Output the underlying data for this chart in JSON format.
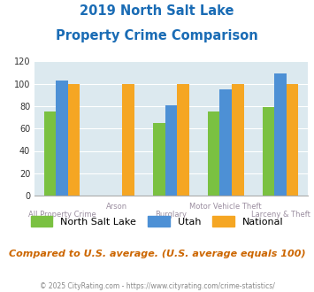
{
  "title_line1": "2019 North Salt Lake",
  "title_line2": "Property Crime Comparison",
  "categories": [
    "All Property Crime",
    "Arson",
    "Burglary",
    "Motor Vehicle Theft",
    "Larceny & Theft"
  ],
  "series": {
    "North Salt Lake": [
      75,
      0,
      65,
      75,
      79
    ],
    "Utah": [
      103,
      0,
      81,
      95,
      109
    ],
    "National": [
      100,
      100,
      100,
      100,
      100
    ]
  },
  "colors": {
    "North Salt Lake": "#7ac141",
    "Utah": "#4d90d5",
    "National": "#f5a623"
  },
  "ylim": [
    0,
    120
  ],
  "yticks": [
    0,
    20,
    40,
    60,
    80,
    100,
    120
  ],
  "bg_color": "#dce9ef",
  "grid_color": "#ffffff",
  "title_color": "#1a6cb5",
  "subtitle_note": "Compared to U.S. average. (U.S. average equals 100)",
  "footer": "© 2025 CityRating.com - https://www.cityrating.com/crime-statistics/",
  "subtitle_color": "#cc6600",
  "footer_color": "#888888",
  "label_color": "#9b8ea0"
}
